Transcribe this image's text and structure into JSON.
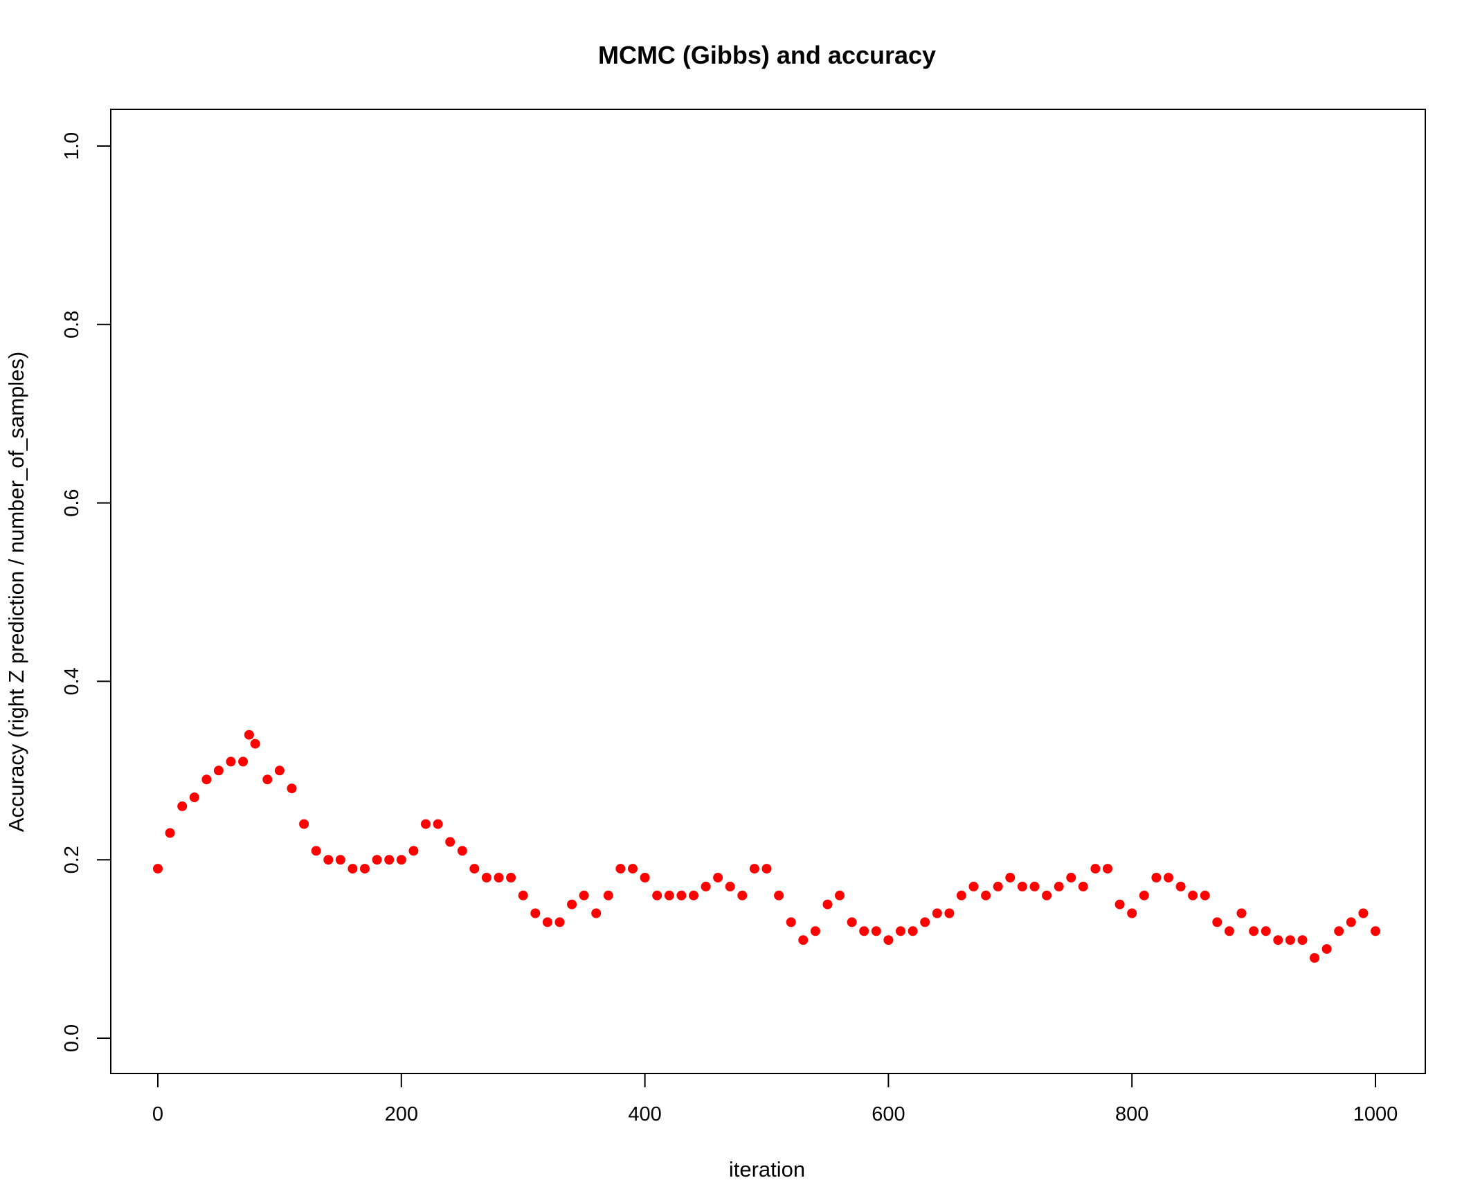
{
  "chart_data": {
    "type": "scatter",
    "title": "MCMC (Gibbs) and accuracy",
    "xlabel": "iteration",
    "ylabel": "Accuracy (right Z prediction / number_of_samples)",
    "xlim": [
      0,
      1000
    ],
    "ylim": [
      0,
      1
    ],
    "x_ticks": [
      0,
      200,
      400,
      600,
      800,
      1000
    ],
    "y_ticks": [
      0.0,
      0.2,
      0.4,
      0.6,
      0.8,
      1.0
    ],
    "x_tick_labels": [
      "0",
      "200",
      "400",
      "600",
      "800",
      "1000"
    ],
    "y_tick_labels": [
      "0.0",
      "0.2",
      "0.4",
      "0.6",
      "0.8",
      "1.0"
    ],
    "grid": false,
    "legend": "none",
    "point_color": "#ff0000",
    "series": [
      {
        "x": [
          0,
          10,
          20,
          30,
          40,
          50,
          60,
          70,
          75,
          80,
          90,
          100,
          110,
          120,
          130,
          140,
          150,
          160,
          170,
          180,
          190,
          200,
          210,
          220,
          230,
          240,
          250,
          260,
          270,
          280,
          290,
          300,
          310,
          320,
          330,
          340,
          350,
          360,
          370,
          380,
          390,
          400,
          410,
          420,
          430,
          440,
          450,
          460,
          470,
          480,
          490,
          500,
          510,
          520,
          530,
          540,
          550,
          560,
          570,
          580,
          590,
          600,
          610,
          620,
          630,
          640,
          650,
          660,
          670,
          680,
          690,
          700,
          710,
          720,
          730,
          740,
          750,
          760,
          770,
          780,
          790,
          800,
          810,
          820,
          830,
          840,
          850,
          860,
          870,
          880,
          890,
          900,
          910,
          920,
          930,
          940,
          950,
          960,
          970,
          980,
          990,
          1000
        ],
        "y": [
          0.19,
          0.23,
          0.26,
          0.27,
          0.29,
          0.3,
          0.31,
          0.31,
          0.34,
          0.33,
          0.29,
          0.3,
          0.28,
          0.24,
          0.21,
          0.2,
          0.2,
          0.19,
          0.19,
          0.2,
          0.2,
          0.2,
          0.21,
          0.24,
          0.24,
          0.22,
          0.21,
          0.19,
          0.18,
          0.18,
          0.18,
          0.16,
          0.14,
          0.13,
          0.13,
          0.15,
          0.16,
          0.14,
          0.16,
          0.19,
          0.19,
          0.18,
          0.16,
          0.16,
          0.16,
          0.16,
          0.17,
          0.18,
          0.17,
          0.16,
          0.19,
          0.19,
          0.16,
          0.13,
          0.11,
          0.12,
          0.15,
          0.16,
          0.13,
          0.12,
          0.12,
          0.11,
          0.12,
          0.12,
          0.13,
          0.14,
          0.14,
          0.16,
          0.17,
          0.16,
          0.17,
          0.18,
          0.17,
          0.17,
          0.16,
          0.17,
          0.18,
          0.17,
          0.19,
          0.19,
          0.15,
          0.14,
          0.16,
          0.18,
          0.18,
          0.17,
          0.16,
          0.16,
          0.13,
          0.12,
          0.14,
          0.12,
          0.12,
          0.11,
          0.11,
          0.11,
          0.09,
          0.1,
          0.12,
          0.13,
          0.14,
          0.12
        ]
      }
    ]
  }
}
